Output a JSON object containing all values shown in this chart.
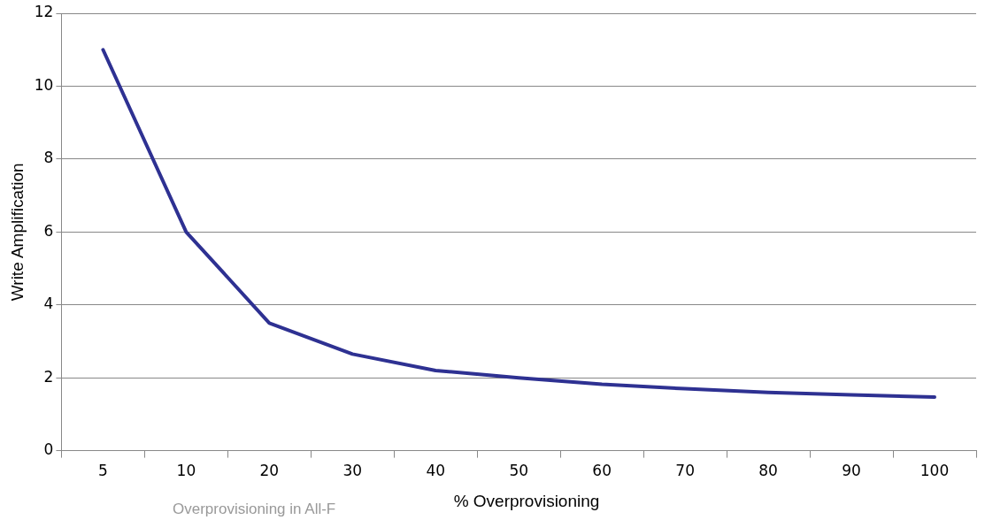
{
  "chart_data": {
    "type": "line",
    "xlabel": "% Overprovisioning",
    "ylabel": "Write Amplification",
    "categories": [
      "5",
      "10",
      "20",
      "30",
      "40",
      "50",
      "60",
      "70",
      "80",
      "90",
      "100"
    ],
    "series": [
      {
        "color": "#2e3192",
        "values": [
          11,
          6,
          3.5,
          2.65,
          2.2,
          2.0,
          1.82,
          1.7,
          1.6,
          1.53,
          1.47
        ]
      }
    ],
    "ylim": [
      0,
      12
    ],
    "yticks": [
      0,
      2,
      4,
      6,
      8,
      10,
      12
    ],
    "grid": "y",
    "legend": false,
    "marker": "none",
    "line_style": "solid",
    "annotations": [
      "Overprovisioning in All-F"
    ]
  }
}
